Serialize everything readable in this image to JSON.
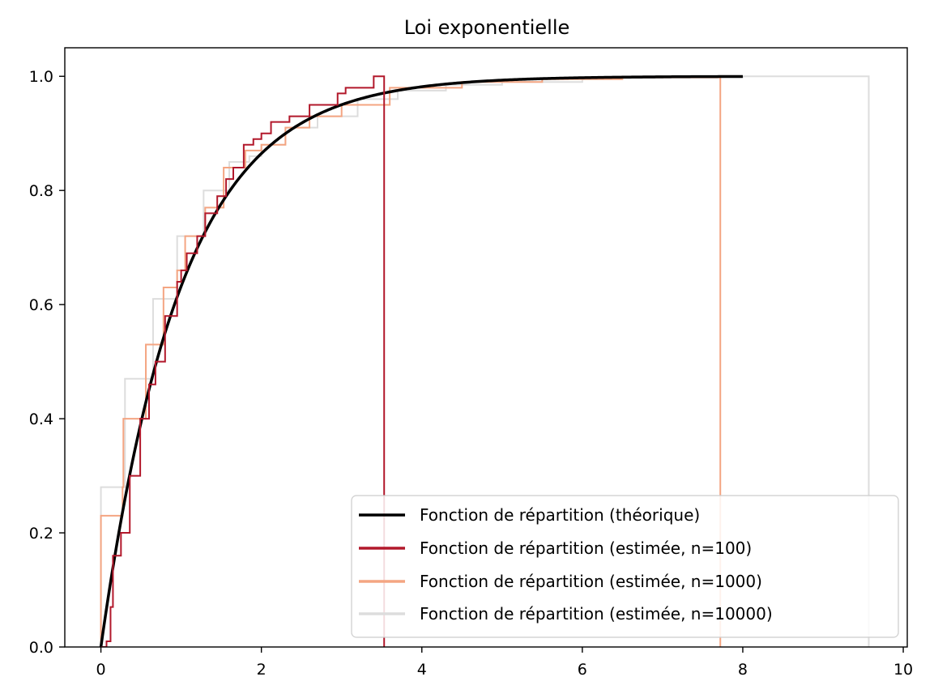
{
  "chart_data": {
    "type": "line",
    "title": "Loi exponentielle",
    "xlabel": "",
    "ylabel": "",
    "xlim": [
      -0.45,
      10.05
    ],
    "ylim": [
      0,
      1.05
    ],
    "xticks": [
      0,
      2,
      4,
      6,
      8,
      10
    ],
    "xtick_labels": [
      "0",
      "2",
      "4",
      "6",
      "8",
      "10"
    ],
    "yticks": [
      0,
      0.2,
      0.4,
      0.6,
      0.8,
      1.0
    ],
    "ytick_labels": [
      "0.0",
      "0.2",
      "0.4",
      "0.6",
      "0.8",
      "1.0"
    ],
    "grid": false,
    "legend_position": "lower-right",
    "series": [
      {
        "name": "Fonction de répartition (théorique)",
        "color": "#000000",
        "kind": "curve",
        "function": "1 - exp(-x)",
        "x_range": [
          0,
          8.0
        ]
      },
      {
        "name": "Fonction de répartition (estimée, n=100)",
        "color": "#b2182b",
        "kind": "step",
        "max_x": 3.53,
        "steps": [
          [
            0,
            0
          ],
          [
            0.07,
            0.01
          ],
          [
            0.12,
            0.07
          ],
          [
            0.15,
            0.16
          ],
          [
            0.25,
            0.2
          ],
          [
            0.36,
            0.3
          ],
          [
            0.49,
            0.4
          ],
          [
            0.6,
            0.46
          ],
          [
            0.68,
            0.5
          ],
          [
            0.8,
            0.58
          ],
          [
            0.95,
            0.64
          ],
          [
            1.0,
            0.66
          ],
          [
            1.07,
            0.69
          ],
          [
            1.2,
            0.72
          ],
          [
            1.3,
            0.76
          ],
          [
            1.45,
            0.79
          ],
          [
            1.56,
            0.82
          ],
          [
            1.65,
            0.84
          ],
          [
            1.78,
            0.88
          ],
          [
            1.9,
            0.89
          ],
          [
            2.0,
            0.9
          ],
          [
            2.12,
            0.92
          ],
          [
            2.35,
            0.93
          ],
          [
            2.6,
            0.95
          ],
          [
            2.95,
            0.97
          ],
          [
            3.05,
            0.98
          ],
          [
            3.4,
            1.0
          ],
          [
            3.53,
            0.97
          ]
        ]
      },
      {
        "name": "Fonction de répartition (estimée, n=1000)",
        "color": "#f4a582",
        "kind": "step",
        "max_x": 7.72,
        "steps": [
          [
            0,
            0.23
          ],
          [
            0.27,
            0.28
          ],
          [
            0.28,
            0.4
          ],
          [
            0.56,
            0.53
          ],
          [
            0.78,
            0.63
          ],
          [
            0.95,
            0.66
          ],
          [
            1.05,
            0.72
          ],
          [
            1.3,
            0.77
          ],
          [
            1.53,
            0.84
          ],
          [
            1.8,
            0.87
          ],
          [
            2.0,
            0.88
          ],
          [
            2.3,
            0.91
          ],
          [
            2.6,
            0.93
          ],
          [
            3.0,
            0.95
          ],
          [
            3.6,
            0.98
          ],
          [
            4.5,
            0.99
          ],
          [
            5.5,
            0.995
          ],
          [
            6.5,
            0.998
          ],
          [
            7.72,
            0.998
          ]
        ]
      },
      {
        "name": "Fonction de répartition (estimée, n=10000)",
        "color": "#dddddd",
        "kind": "step",
        "max_x": 9.57,
        "steps": [
          [
            0,
            0.28
          ],
          [
            0.3,
            0.47
          ],
          [
            0.65,
            0.61
          ],
          [
            0.95,
            0.72
          ],
          [
            1.28,
            0.8
          ],
          [
            1.6,
            0.85
          ],
          [
            1.85,
            0.86
          ],
          [
            2.0,
            0.88
          ],
          [
            2.3,
            0.91
          ],
          [
            2.7,
            0.93
          ],
          [
            3.2,
            0.96
          ],
          [
            3.7,
            0.975
          ],
          [
            4.3,
            0.985
          ],
          [
            5.0,
            0.99
          ],
          [
            6.0,
            0.997
          ],
          [
            7.0,
            0.999
          ],
          [
            8.0,
            1.0
          ],
          [
            9.57,
            1.0
          ]
        ]
      }
    ]
  }
}
